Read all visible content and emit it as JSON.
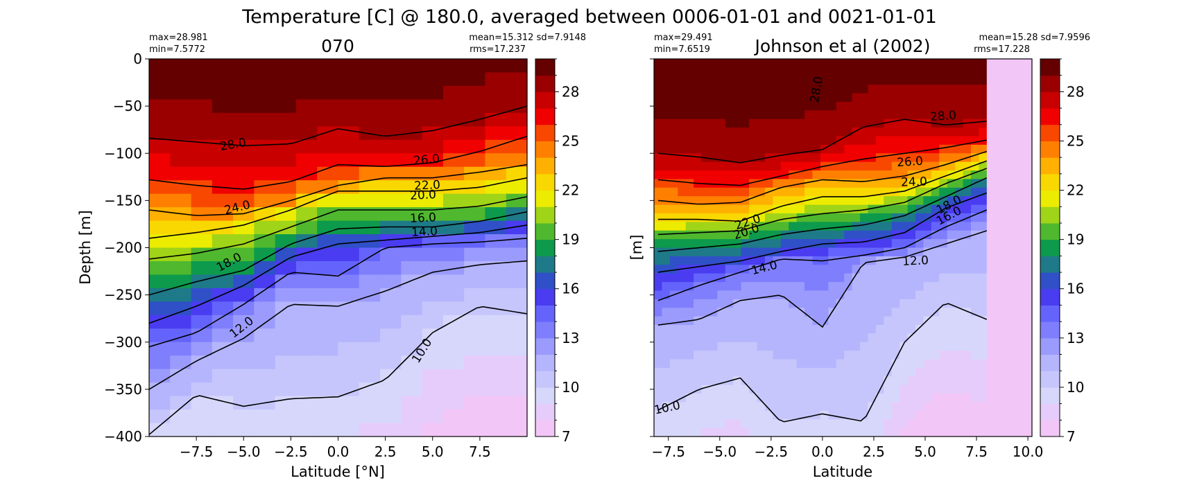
{
  "figure": {
    "suptitle": "Temperature [C] @ 180.0, averaged between 0006-01-01 and 0021-01-01"
  },
  "chart_data": [
    {
      "type": "heatmap",
      "title": "070",
      "xlabel": "Latitude [°N]",
      "ylabel": "Depth [m]",
      "xlim": [
        -10,
        10
      ],
      "ylim": [
        -400,
        0
      ],
      "xticks": [
        -7.5,
        -5.0,
        -2.5,
        0.0,
        2.5,
        5.0,
        7.5
      ],
      "xticklabels": [
        "−7.5",
        "−5.0",
        "−2.5",
        "0.0",
        "2.5",
        "5.0",
        "7.5"
      ],
      "yticks": [
        0,
        -50,
        -100,
        -150,
        -200,
        -250,
        -300,
        -350,
        -400
      ],
      "yticklabels": [
        "0",
        "−50",
        "−100",
        "−150",
        "−200",
        "−250",
        "−300",
        "−350",
        "−400"
      ],
      "stats": {
        "max_text": "max=28.981",
        "min_text": "min=7.5772",
        "mean_sd_text": "mean=15.312 sd=7.9148",
        "rms_text": "rms=17.237"
      },
      "colorbar": {
        "min": 7,
        "max": 30,
        "step": 1,
        "ticks": [
          7,
          10,
          13,
          16,
          19,
          22,
          25,
          28
        ],
        "ticklabels": [
          "7",
          "10",
          "13",
          "16",
          "19",
          "22",
          "25",
          "28"
        ]
      },
      "contour_labels": [
        "28.0",
        "26.0",
        "22.0",
        "24.0",
        "20.0",
        "16.0",
        "14.0",
        "18.0",
        "12.0",
        "10.0"
      ],
      "profile": {
        "lat": [
          -10,
          -7.5,
          -5,
          -2.5,
          0,
          2.5,
          5,
          7.5,
          10
        ],
        "z28": [
          -84,
          -88,
          -92,
          -90,
          -74,
          -82,
          -76,
          -64,
          -50
        ],
        "z26": [
          -128,
          -134,
          -138,
          -130,
          -112,
          -114,
          -110,
          -98,
          -82
        ],
        "z24": [
          -160,
          -166,
          -164,
          -150,
          -134,
          -126,
          -126,
          -120,
          -112
        ],
        "z22": [
          -190,
          -184,
          -176,
          -160,
          -140,
          -140,
          -140,
          -136,
          -126
        ],
        "z20": [
          -212,
          -206,
          -196,
          -178,
          -160,
          -160,
          -160,
          -156,
          -146
        ],
        "z18": [
          -250,
          -236,
          -224,
          -196,
          -180,
          -178,
          -178,
          -172,
          -162
        ],
        "z16": [
          -280,
          -262,
          -240,
          -210,
          -196,
          -192,
          -188,
          -184,
          -176
        ],
        "z14": [
          -305,
          -290,
          -260,
          -226,
          -230,
          -200,
          -196,
          -194,
          -190
        ],
        "z12": [
          -350,
          -320,
          -296,
          -260,
          -262,
          -246,
          -226,
          -218,
          -214
        ],
        "z10": [
          -398,
          -356,
          -368,
          -360,
          -358,
          -340,
          -290,
          -262,
          -270
        ]
      }
    },
    {
      "type": "heatmap",
      "title": "Johnson et al (2002)",
      "xlabel": "Latitude",
      "ylabel": "[m]",
      "xlim": [
        -8.2,
        10.2
      ],
      "ylim": [
        -400,
        0
      ],
      "data_xmax": 8.0,
      "xticks": [
        -7.5,
        -5.0,
        -2.5,
        0.0,
        2.5,
        5.0,
        7.5,
        10.0
      ],
      "xticklabels": [
        "−7.5",
        "−5.0",
        "−2.5",
        "0.0",
        "2.5",
        "5.0",
        "7.5",
        "10.0"
      ],
      "yticks": [
        0,
        -50,
        -100,
        -150,
        -200,
        -250,
        -300,
        -350,
        -400
      ],
      "stats": {
        "max_text": "max=29.491",
        "min_text": "min=7.6519",
        "mean_sd_text": "mean=15.28 sd=7.9596",
        "rms_text": "rms=17.228"
      },
      "colorbar": {
        "min": 7,
        "max": 30,
        "step": 1,
        "ticks": [
          7,
          10,
          13,
          16,
          19,
          22,
          25,
          28
        ],
        "ticklabels": [
          "7",
          "10",
          "13",
          "16",
          "19",
          "22",
          "25",
          "28"
        ]
      },
      "contour_labels": [
        "28.0",
        "28.0",
        "26.0",
        "24.0",
        "22.0",
        "20.0",
        "18.0",
        "16.0",
        "14.0",
        "12.0",
        "10.0"
      ],
      "profile": {
        "lat": [
          -8,
          -6,
          -4,
          -2,
          0,
          2,
          4,
          6,
          8
        ],
        "z28": [
          -100,
          -104,
          -110,
          -102,
          -96,
          -72,
          -64,
          -70,
          -66
        ],
        "z26": [
          -128,
          -132,
          -134,
          -124,
          -114,
          -106,
          -100,
          -94,
          -86
        ],
        "z24": [
          -150,
          -154,
          -152,
          -136,
          -128,
          -130,
          -124,
          -112,
          -98
        ],
        "z22": [
          -170,
          -170,
          -172,
          -156,
          -146,
          -146,
          -140,
          -124,
          -108
        ],
        "z20": [
          -186,
          -184,
          -182,
          -170,
          -164,
          -160,
          -152,
          -132,
          -116
        ],
        "z18": [
          -204,
          -200,
          -196,
          -186,
          -180,
          -176,
          -166,
          -146,
          -126
        ],
        "z16": [
          -226,
          -220,
          -214,
          -204,
          -196,
          -194,
          -184,
          -158,
          -142
        ],
        "z14": [
          -256,
          -240,
          -226,
          -212,
          -214,
          -208,
          -200,
          -178,
          -160
        ],
        "z12": [
          -282,
          -276,
          -256,
          -250,
          -284,
          -216,
          -210,
          -196,
          -182
        ],
        "z10": [
          -372,
          -350,
          -338,
          -385,
          -376,
          -384,
          -300,
          -258,
          -276
        ]
      }
    }
  ]
}
